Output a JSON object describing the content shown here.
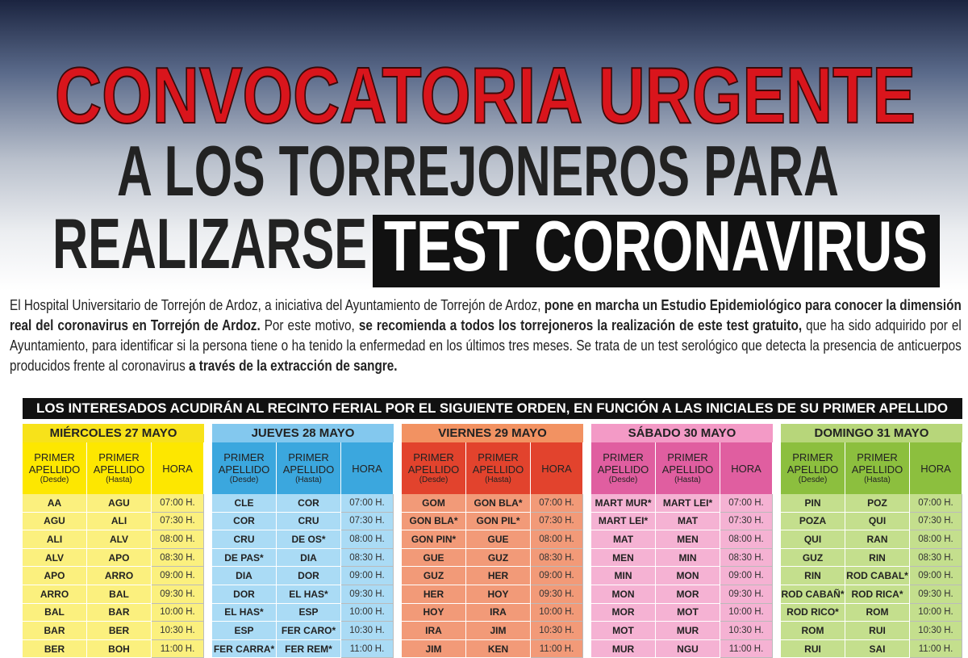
{
  "header": {
    "title": "CONVOCATORIA URGENTE",
    "line1": "A LOS TORREJONEROS PARA",
    "line2": "REALIZARSE",
    "highlight": "TEST CORONAVIRUS"
  },
  "intro": [
    {
      "text": "El Hospital Universitario de Torrejón de Ardoz, a iniciativa del Ayuntamiento de Torrejón de Ardoz, ",
      "bold": false
    },
    {
      "text": "pone en marcha un Estudio Epidemiológico para conocer la dimensión real del coronavirus en Torrejón de Ardoz.",
      "bold": true
    },
    {
      "text": " Por este motivo, ",
      "bold": false
    },
    {
      "text": "se recomienda a todos los torrejoneros la realización de este test gratuito,",
      "bold": true
    },
    {
      "text": " que ha sido adquirido por el Ayuntamiento, para identificar si la persona tiene o ha tenido la enfermedad en los últimos tres meses. Se trata de un test serológico que detecta la presencia de anticuerpos producidos frente al coronavirus ",
      "bold": false
    },
    {
      "text": "a través de la extracción de sangre.",
      "bold": true
    }
  ],
  "banner": "LOS INTERESADOS ACUDIRÁN AL RECINTO FERIAL POR EL SIGUIENTE ORDEN, EN FUNCIÓN A LAS INICIALES DE SU PRIMER APELLIDO",
  "schedule": {
    "columns": [
      {
        "label": "PRIMER APELLIDO",
        "note": "(Desde)"
      },
      {
        "label": "PRIMER APELLIDO",
        "note": "(Hasta)"
      },
      {
        "label": "HORA"
      }
    ],
    "hours": [
      "07:00 H.",
      "07:30 H.",
      "08:00 H.",
      "08:30 H.",
      "09:00 H.",
      "09:30 H.",
      "10:00 H.",
      "10:30 H.",
      "11:00 H."
    ],
    "days": [
      {
        "title": "MIÉRCOLES 27 MAYO",
        "rows": [
          [
            "AA",
            "AGU"
          ],
          [
            "AGU",
            "ALI"
          ],
          [
            "ALI",
            "ALV"
          ],
          [
            "ALV",
            "APO"
          ],
          [
            "APO",
            "ARRO"
          ],
          [
            "ARRO",
            "BAL"
          ],
          [
            "BAL",
            "BAR"
          ],
          [
            "BAR",
            "BER"
          ],
          [
            "BER",
            "BOH"
          ]
        ]
      },
      {
        "title": "JUEVES 28 MAYO",
        "rows": [
          [
            "CLE",
            "COR"
          ],
          [
            "COR",
            "CRU"
          ],
          [
            "CRU",
            "DE OS*"
          ],
          [
            "DE PAS*",
            "DIA"
          ],
          [
            "DIA",
            "DOR"
          ],
          [
            "DOR",
            "EL HAS*"
          ],
          [
            "EL HAS*",
            "ESP"
          ],
          [
            "ESP",
            "FER CARO*"
          ],
          [
            "FER CARRA*",
            "FER REM*"
          ]
        ]
      },
      {
        "title": "VIERNES 29 MAYO",
        "rows": [
          [
            "GOM",
            "GON BLA*"
          ],
          [
            "GON BLA*",
            "GON PIL*"
          ],
          [
            "GON PIN*",
            "GUE"
          ],
          [
            "GUE",
            "GUZ"
          ],
          [
            "GUZ",
            "HER"
          ],
          [
            "HER",
            "HOY"
          ],
          [
            "HOY",
            "IRA"
          ],
          [
            "IRA",
            "JIM"
          ],
          [
            "JIM",
            "KEN"
          ]
        ]
      },
      {
        "title": "SÁBADO 30 MAYO",
        "rows": [
          [
            "MART MUR*",
            "MART LEI*"
          ],
          [
            "MART LEI*",
            "MAT"
          ],
          [
            "MAT",
            "MEN"
          ],
          [
            "MEN",
            "MIN"
          ],
          [
            "MIN",
            "MON"
          ],
          [
            "MON",
            "MOR"
          ],
          [
            "MOR",
            "MOT"
          ],
          [
            "MOT",
            "MUR"
          ],
          [
            "MUR",
            "NGU"
          ]
        ]
      },
      {
        "title": "DOMINGO 31 MAYO",
        "rows": [
          [
            "PIN",
            "POZ"
          ],
          [
            "POZA",
            "QUI"
          ],
          [
            "QUI",
            "RAN"
          ],
          [
            "GUZ",
            "RIN"
          ],
          [
            "RIN",
            "ROD CABAL*"
          ],
          [
            "ROD CABAÑ*",
            "ROD RICA*"
          ],
          [
            "ROD RICO*",
            "ROM"
          ],
          [
            "ROM",
            "RUI"
          ],
          [
            "RUI",
            "SAI"
          ]
        ]
      }
    ]
  }
}
